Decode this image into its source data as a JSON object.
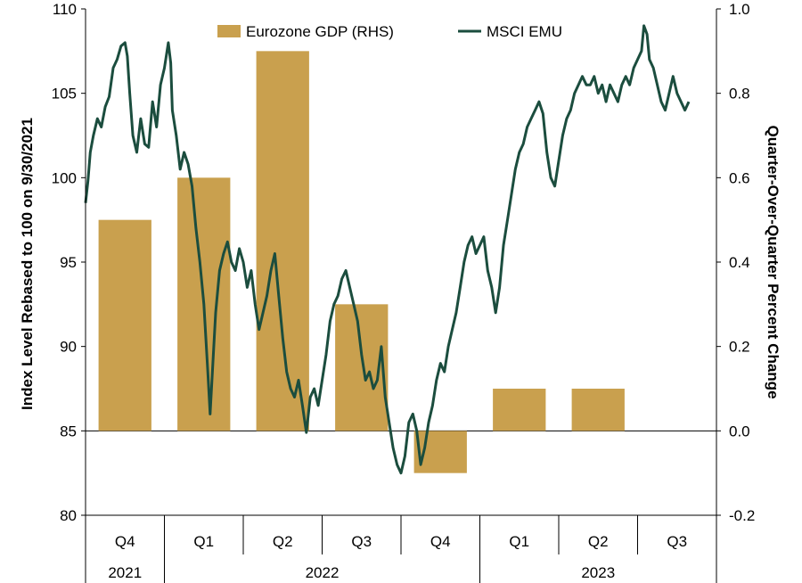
{
  "chart_data": {
    "type": "bar+line",
    "title": "",
    "legend": {
      "placement": "top-center",
      "items": [
        {
          "label": "Eurozone GDP (RHS)",
          "kind": "bar",
          "color": "#C9A04E"
        },
        {
          "label": "MSCI EMU",
          "kind": "line",
          "color": "#1B4D3E"
        }
      ]
    },
    "left_axis": {
      "label": "Index Level Rebased to 100 on 9/30/2021",
      "ylim": [
        80,
        110
      ],
      "ticks": [
        "80",
        "85",
        "90",
        "95",
        "100",
        "105",
        "110"
      ]
    },
    "right_axis": {
      "label": "Quarter-Over-Quarter Percent Change",
      "ylim": [
        -0.2,
        1.0
      ],
      "ticks": [
        "-0.2",
        "0.0",
        "0.2",
        "0.4",
        "0.6",
        "0.8",
        "1.0"
      ]
    },
    "quarters": [
      "Q4",
      "Q1",
      "Q2",
      "Q3",
      "Q4",
      "Q1",
      "Q2",
      "Q3"
    ],
    "years": [
      {
        "label": "2021",
        "span": 1
      },
      {
        "label": "2022",
        "span": 4
      },
      {
        "label": "2023",
        "span": 3
      }
    ],
    "bar_series": {
      "name": "Eurozone GDP (RHS)",
      "values": [
        0.5,
        0.6,
        0.9,
        0.3,
        -0.1,
        0.1,
        0.1,
        null
      ]
    },
    "line_series": {
      "name": "MSCI EMU",
      "x_unit": "quarter index (0 = start of Q4 2021)",
      "points": [
        [
          0.0,
          98.5
        ],
        [
          0.03,
          99.8
        ],
        [
          0.06,
          101.5
        ],
        [
          0.1,
          102.5
        ],
        [
          0.15,
          103.5
        ],
        [
          0.2,
          103.0
        ],
        [
          0.25,
          104.2
        ],
        [
          0.3,
          104.8
        ],
        [
          0.35,
          106.5
        ],
        [
          0.4,
          107.0
        ],
        [
          0.45,
          107.8
        ],
        [
          0.5,
          108.0
        ],
        [
          0.53,
          107.2
        ],
        [
          0.56,
          105.0
        ],
        [
          0.6,
          102.5
        ],
        [
          0.65,
          101.5
        ],
        [
          0.7,
          103.5
        ],
        [
          0.75,
          102.0
        ],
        [
          0.8,
          101.8
        ],
        [
          0.85,
          104.5
        ],
        [
          0.9,
          103.0
        ],
        [
          0.95,
          105.5
        ],
        [
          1.0,
          106.5
        ],
        [
          1.05,
          108.0
        ],
        [
          1.08,
          106.8
        ],
        [
          1.1,
          104.0
        ],
        [
          1.15,
          102.5
        ],
        [
          1.2,
          100.5
        ],
        [
          1.25,
          101.5
        ],
        [
          1.3,
          100.8
        ],
        [
          1.35,
          99.5
        ],
        [
          1.4,
          97.0
        ],
        [
          1.45,
          95.0
        ],
        [
          1.5,
          92.5
        ],
        [
          1.55,
          88.5
        ],
        [
          1.58,
          86.0
        ],
        [
          1.62,
          89.5
        ],
        [
          1.65,
          92.0
        ],
        [
          1.7,
          94.5
        ],
        [
          1.75,
          95.5
        ],
        [
          1.8,
          96.2
        ],
        [
          1.85,
          95.0
        ],
        [
          1.9,
          94.5
        ],
        [
          1.95,
          95.8
        ],
        [
          2.0,
          95.0
        ],
        [
          2.05,
          93.5
        ],
        [
          2.1,
          94.5
        ],
        [
          2.15,
          92.5
        ],
        [
          2.2,
          91.0
        ],
        [
          2.25,
          92.0
        ],
        [
          2.3,
          93.0
        ],
        [
          2.35,
          94.5
        ],
        [
          2.4,
          95.5
        ],
        [
          2.45,
          93.0
        ],
        [
          2.5,
          90.5
        ],
        [
          2.55,
          88.5
        ],
        [
          2.6,
          87.5
        ],
        [
          2.65,
          87.0
        ],
        [
          2.7,
          88.0
        ],
        [
          2.75,
          86.5
        ],
        [
          2.8,
          84.9
        ],
        [
          2.85,
          87.0
        ],
        [
          2.9,
          87.5
        ],
        [
          2.95,
          86.5
        ],
        [
          3.0,
          88.0
        ],
        [
          3.05,
          89.5
        ],
        [
          3.1,
          91.5
        ],
        [
          3.15,
          92.5
        ],
        [
          3.2,
          93.0
        ],
        [
          3.25,
          94.0
        ],
        [
          3.3,
          94.5
        ],
        [
          3.35,
          93.5
        ],
        [
          3.4,
          92.5
        ],
        [
          3.45,
          91.5
        ],
        [
          3.5,
          89.5
        ],
        [
          3.55,
          88.0
        ],
        [
          3.6,
          88.5
        ],
        [
          3.65,
          87.5
        ],
        [
          3.7,
          88.0
        ],
        [
          3.75,
          90.0
        ],
        [
          3.8,
          87.0
        ],
        [
          3.85,
          85.5
        ],
        [
          3.9,
          84.0
        ],
        [
          3.95,
          83.0
        ],
        [
          4.0,
          82.5
        ],
        [
          4.05,
          83.5
        ],
        [
          4.1,
          85.5
        ],
        [
          4.15,
          86.0
        ],
        [
          4.2,
          85.0
        ],
        [
          4.25,
          83.0
        ],
        [
          4.3,
          84.0
        ],
        [
          4.35,
          85.5
        ],
        [
          4.4,
          86.5
        ],
        [
          4.45,
          88.0
        ],
        [
          4.5,
          89.0
        ],
        [
          4.55,
          88.5
        ],
        [
          4.6,
          90.0
        ],
        [
          4.65,
          91.0
        ],
        [
          4.7,
          92.0
        ],
        [
          4.75,
          93.5
        ],
        [
          4.8,
          95.0
        ],
        [
          4.85,
          96.0
        ],
        [
          4.9,
          96.5
        ],
        [
          4.95,
          95.5
        ],
        [
          5.0,
          96.0
        ],
        [
          5.05,
          96.5
        ],
        [
          5.1,
          94.5
        ],
        [
          5.15,
          93.5
        ],
        [
          5.2,
          92.0
        ],
        [
          5.25,
          93.5
        ],
        [
          5.3,
          96.0
        ],
        [
          5.35,
          97.5
        ],
        [
          5.4,
          99.0
        ],
        [
          5.45,
          100.5
        ],
        [
          5.5,
          101.5
        ],
        [
          5.55,
          102.0
        ],
        [
          5.6,
          103.0
        ],
        [
          5.65,
          103.5
        ],
        [
          5.7,
          104.0
        ],
        [
          5.75,
          104.5
        ],
        [
          5.8,
          103.8
        ],
        [
          5.85,
          101.5
        ],
        [
          5.9,
          100.0
        ],
        [
          5.95,
          99.5
        ],
        [
          6.0,
          101.0
        ],
        [
          6.05,
          102.5
        ],
        [
          6.1,
          103.5
        ],
        [
          6.15,
          104.0
        ],
        [
          6.2,
          105.0
        ],
        [
          6.25,
          105.5
        ],
        [
          6.3,
          106.0
        ],
        [
          6.35,
          105.5
        ],
        [
          6.4,
          105.5
        ],
        [
          6.45,
          106.0
        ],
        [
          6.5,
          105.0
        ],
        [
          6.55,
          105.5
        ],
        [
          6.6,
          104.5
        ],
        [
          6.65,
          105.5
        ],
        [
          6.7,
          105.0
        ],
        [
          6.75,
          104.5
        ],
        [
          6.8,
          105.5
        ],
        [
          6.85,
          106.0
        ],
        [
          6.9,
          105.5
        ],
        [
          6.95,
          106.5
        ],
        [
          7.0,
          107.0
        ],
        [
          7.05,
          107.5
        ],
        [
          7.08,
          109.0
        ],
        [
          7.12,
          108.5
        ],
        [
          7.15,
          107.0
        ],
        [
          7.2,
          106.5
        ],
        [
          7.25,
          105.5
        ],
        [
          7.3,
          104.5
        ],
        [
          7.35,
          104.0
        ],
        [
          7.4,
          105.0
        ],
        [
          7.45,
          106.0
        ],
        [
          7.5,
          105.0
        ],
        [
          7.55,
          104.5
        ],
        [
          7.6,
          104.0
        ],
        [
          7.65,
          104.5
        ]
      ]
    }
  }
}
